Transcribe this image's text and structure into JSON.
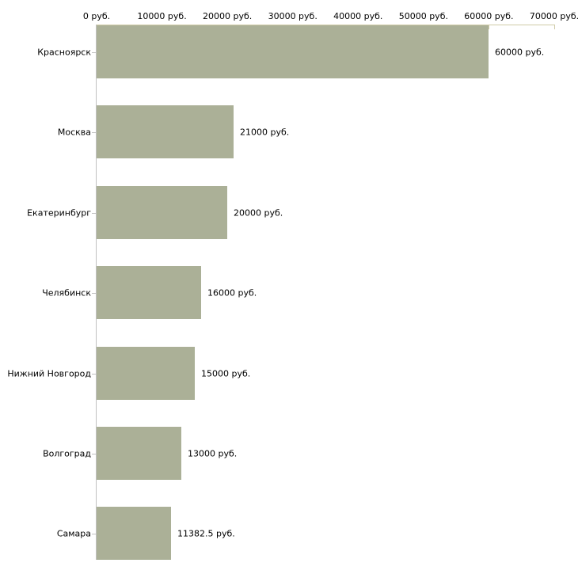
{
  "chart_data": {
    "type": "bar",
    "orientation": "horizontal",
    "title": "",
    "xlabel": "",
    "ylabel": "",
    "unit": "руб.",
    "categories": [
      "Красноярск",
      "Москва",
      "Екатеринбург",
      "Челябинск",
      "Нижний Новгород",
      "Волгоград",
      "Самара"
    ],
    "values": [
      60000,
      21000,
      20000,
      16000,
      15000,
      13000,
      11382.5
    ],
    "value_labels": [
      "60000 руб.",
      "21000 руб.",
      "20000 руб.",
      "16000 руб.",
      "15000 руб.",
      "13000 руб.",
      "11382.5 руб."
    ],
    "x_ticks": [
      0,
      10000,
      20000,
      30000,
      40000,
      50000,
      60000,
      70000
    ],
    "x_tick_labels": [
      "0 руб.",
      "10000 руб.",
      "20000 руб.",
      "30000 руб.",
      "40000 руб.",
      "50000 руб.",
      "60000 руб.",
      "70000 руб."
    ],
    "xlim": [
      0,
      70000
    ],
    "grid": false,
    "legend": false,
    "axis_position": "top",
    "colors": {
      "bar": "#abb097",
      "x_axis": "#cfcba8",
      "y_axis": "#c1c1c1",
      "text": "#000000",
      "background": "#ffffff"
    }
  }
}
